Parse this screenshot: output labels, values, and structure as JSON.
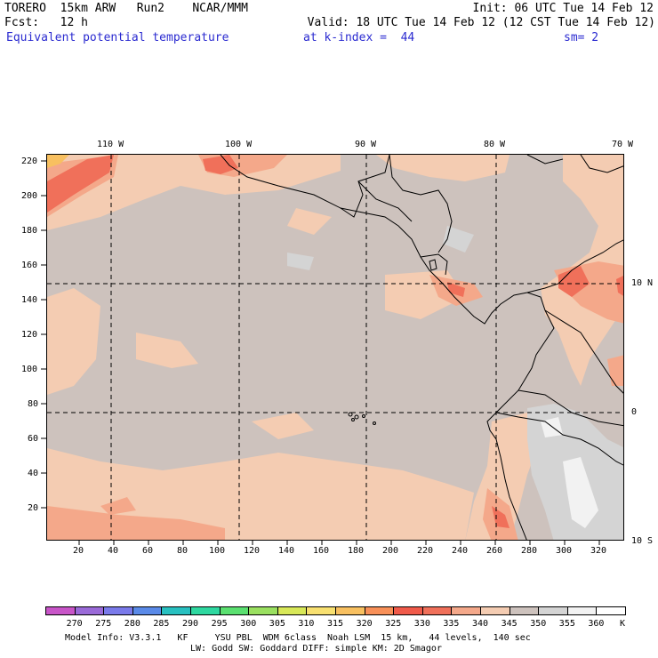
{
  "header": {
    "line1_left": "TORERO  15km ARW   Run2    NCAR/MMM",
    "line1_right": "Init: 06 UTC Tue 14 Feb 12",
    "line2_left": "Fcst:   12 h",
    "line2_right": "Valid: 18 UTC Tue 14 Feb 12 (12 CST Tue 14 Feb 12)",
    "field": "Equivalent potential temperature",
    "level": "at k-index =  44",
    "smooth": "sm= 2"
  },
  "top_ticks": [
    "110 W",
    "100 W",
    "90 W",
    "80 W",
    "70 W"
  ],
  "right_ticks": [
    "10 N",
    "0",
    "10 S"
  ],
  "x_ticks": [
    "20",
    "40",
    "60",
    "80",
    "100",
    "120",
    "140",
    "160",
    "180",
    "200",
    "220",
    "240",
    "260",
    "280",
    "300",
    "320"
  ],
  "y_ticks": [
    "220",
    "200",
    "180",
    "160",
    "140",
    "120",
    "100",
    "80",
    "60",
    "40",
    "20"
  ],
  "colorbar": {
    "unit": "K",
    "labels": [
      "270",
      "275",
      "280",
      "285",
      "290",
      "295",
      "300",
      "305",
      "310",
      "315",
      "320",
      "325",
      "330",
      "335",
      "340",
      "345",
      "350",
      "355",
      "360"
    ],
    "colors": [
      "#c855c8",
      "#9a6ad8",
      "#7a7aea",
      "#5a8ae8",
      "#28c0c0",
      "#2ed8a0",
      "#5ae070",
      "#9ae060",
      "#d8e858",
      "#f8e070",
      "#f8c060",
      "#f89058",
      "#f05a4a",
      "#f0705a",
      "#f4a88a",
      "#f4ccb2",
      "#cdc2bd",
      "#d4d4d4",
      "#f2f2f2",
      "#ffffff"
    ]
  },
  "footer": {
    "line1": "Model Info: V3.3.1   KF     YSU PBL  WDM 6class  Noah LSM  15 km,   44 levels,  140 sec",
    "line2": "LW: Godd SW: Goddard DIFF: simple KM: 2D Smagor"
  }
}
